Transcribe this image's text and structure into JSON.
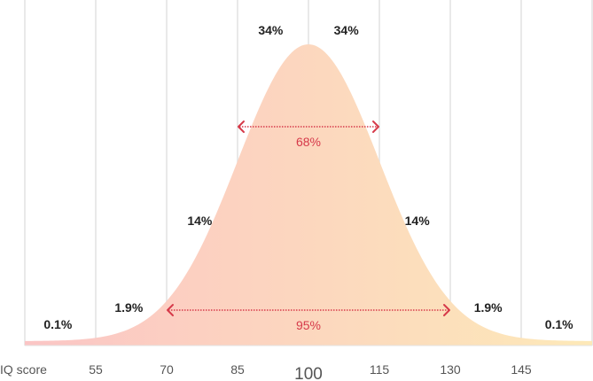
{
  "chart_data": {
    "type": "area",
    "title": "",
    "xlabel": "IQ score",
    "x_ticks": [
      {
        "value": 55,
        "label": "55"
      },
      {
        "value": 70,
        "label": "70"
      },
      {
        "value": 85,
        "label": "85"
      },
      {
        "value": 100,
        "label": "100",
        "emphasis": true
      },
      {
        "value": 115,
        "label": "115"
      },
      {
        "value": 130,
        "label": "130"
      },
      {
        "value": 145,
        "label": "145"
      }
    ],
    "xlim": [
      40,
      160
    ],
    "distribution": {
      "kind": "normal",
      "mean": 100,
      "sd": 15
    },
    "grid": true,
    "fill_gradient": {
      "left": "#fbc5c5",
      "right": "#fde9b8"
    },
    "segment_labels": [
      {
        "x_center": 47,
        "label": "0.1%"
      },
      {
        "x_center": 62,
        "label": "1.9%"
      },
      {
        "x_center": 77,
        "label": "14%"
      },
      {
        "x_center": 92,
        "label": "34%"
      },
      {
        "x_center": 108,
        "label": "34%"
      },
      {
        "x_center": 123,
        "label": "14%"
      },
      {
        "x_center": 138,
        "label": "1.9%"
      },
      {
        "x_center": 153,
        "label": "0.1%"
      }
    ],
    "ranges": [
      {
        "from": 85,
        "to": 115,
        "label": "68%"
      },
      {
        "from": 70,
        "to": 130,
        "label": "95%"
      }
    ],
    "accent_color": "#d63a4a"
  }
}
